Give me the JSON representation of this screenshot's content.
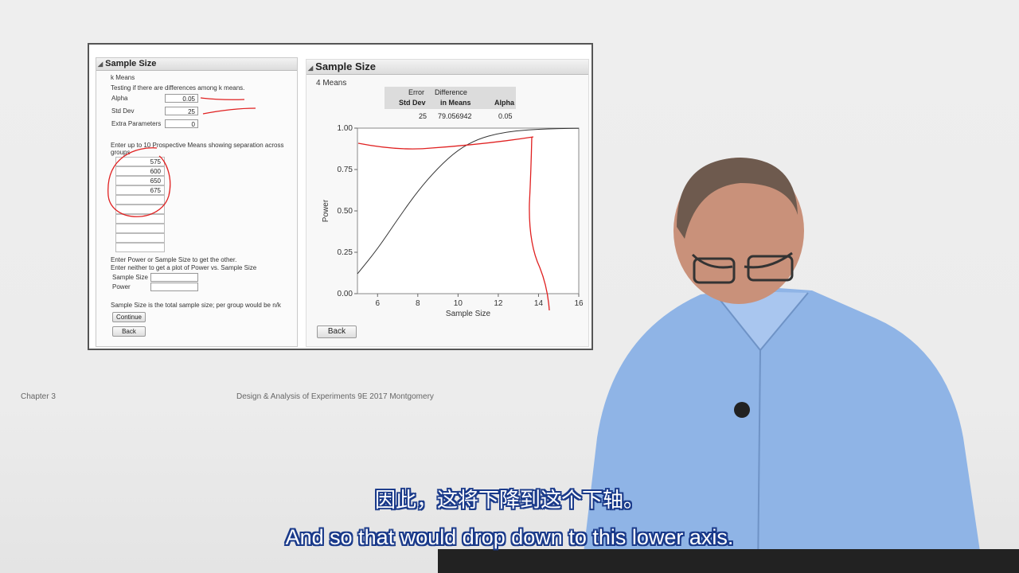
{
  "left_pane": {
    "title": "Sample Size",
    "subtitle": "k Means",
    "description": "Testing if there are differences among k means.",
    "alpha_label": "Alpha",
    "alpha_value": "0.05",
    "std_dev_label": "Std Dev",
    "std_dev_value": "25",
    "extra_label": "Extra Parameters",
    "extra_value": "0",
    "means_instruction_1": "Enter up to 10 Prospective Means showing separation across",
    "means_instruction_2": "groups",
    "means": [
      "575",
      "600",
      "650",
      "675",
      "",
      "",
      "",
      "",
      "",
      ""
    ],
    "power_instruction_1": "Enter Power or Sample Size to get the other.",
    "power_instruction_2": "Enter neither to get a plot of Power vs. Sample Size",
    "sample_size_label": "Sample Size",
    "sample_size_value": "",
    "power_label": "Power",
    "power_value": "",
    "note": "Sample Size is the total sample size; per group would be n/k",
    "continue_label": "Continue",
    "back_label": "Back"
  },
  "right_pane": {
    "title": "Sample Size",
    "subtitle": "4 Means",
    "table": {
      "col1_line1": "Error",
      "col1_line2": "Std Dev",
      "col2_line1": "Difference",
      "col2_line2": "in Means",
      "col3": "Alpha",
      "v1": "25",
      "v2": "79.056942",
      "v3": "0.05"
    },
    "back_label": "Back"
  },
  "chart_data": {
    "type": "line",
    "xlabel": "Sample Size",
    "ylabel": "Power",
    "xlim": [
      5,
      16
    ],
    "ylim": [
      0,
      1
    ],
    "x_ticks": [
      6,
      8,
      10,
      12,
      14,
      16
    ],
    "y_ticks": [
      "0.00",
      "0.25",
      "0.50",
      "0.75",
      "1.00"
    ],
    "series": [
      {
        "x": [
          5,
          6,
          7,
          8,
          9,
          10,
          11,
          12,
          13,
          14,
          15,
          16
        ],
        "y": [
          0.12,
          0.27,
          0.45,
          0.62,
          0.76,
          0.87,
          0.935,
          0.968,
          0.985,
          0.993,
          0.997,
          0.999
        ]
      }
    ]
  },
  "footer": {
    "left": "Chapter 3",
    "center": "Design & Analysis of Experiments 9E 2017 Montgomery"
  },
  "subtitles": {
    "chinese": "因此，这将下降到这个下轴。",
    "english": "And so that would drop down to this lower axis."
  },
  "colors": {
    "annotation": "#e02020",
    "subtitle_outline": "#1a3a8a",
    "shirt": "#8fb4e6"
  }
}
